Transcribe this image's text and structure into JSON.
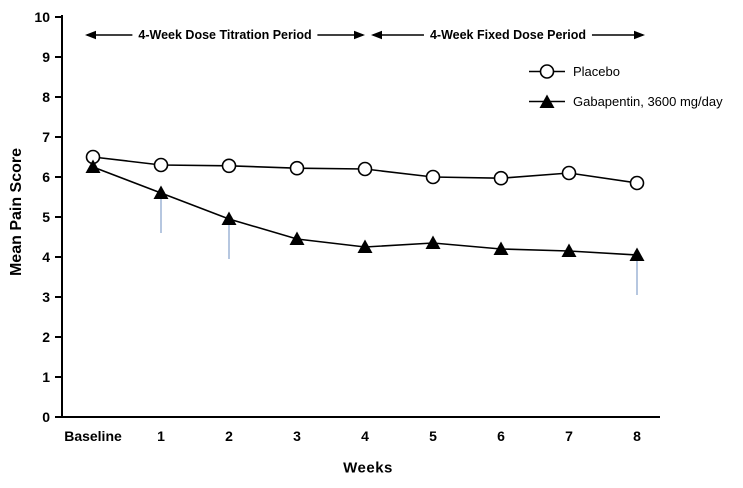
{
  "figure": {
    "background": "#ffffff"
  },
  "chart_data": {
    "type": "line",
    "title": "",
    "xlabel": "Weeks",
    "ylabel": "Mean Pain Score",
    "ylim": [
      0,
      10
    ],
    "yticks": [
      0,
      1,
      2,
      3,
      4,
      5,
      6,
      7,
      8,
      9,
      10
    ],
    "categories": [
      "Baseline",
      "1",
      "2",
      "3",
      "4",
      "5",
      "6",
      "7",
      "8"
    ],
    "series": [
      {
        "name": "Placebo",
        "marker": "circle-open",
        "color": "#000000",
        "values": [
          6.5,
          6.3,
          6.28,
          6.22,
          6.2,
          6.0,
          5.97,
          6.1,
          5.85
        ]
      },
      {
        "name": "Gabapentin, 3600 mg/day",
        "marker": "triangle-filled",
        "color": "#000000",
        "values": [
          6.25,
          5.6,
          4.95,
          4.45,
          4.25,
          4.35,
          4.2,
          4.15,
          4.05
        ]
      }
    ],
    "error_bars": {
      "series": "Gabapentin, 3600 mg/day",
      "direction": "down",
      "color": "#9db4d6",
      "points": [
        {
          "category": "1",
          "down": 1.0
        },
        {
          "category": "2",
          "down": 1.0
        },
        {
          "category": "8",
          "down": 1.0
        }
      ]
    },
    "annotations": [
      {
        "label": "4-Week Dose Titration Period",
        "from": "Baseline",
        "to": "4",
        "style": "double-arrow"
      },
      {
        "label": "4-Week Fixed Dose Period",
        "from": "4",
        "to": "8",
        "style": "double-arrow"
      }
    ],
    "legend": {
      "position": "top-right",
      "entries": [
        "Placebo",
        "Gabapentin, 3600 mg/day"
      ]
    },
    "grid": false,
    "axis_color": "#000000"
  }
}
